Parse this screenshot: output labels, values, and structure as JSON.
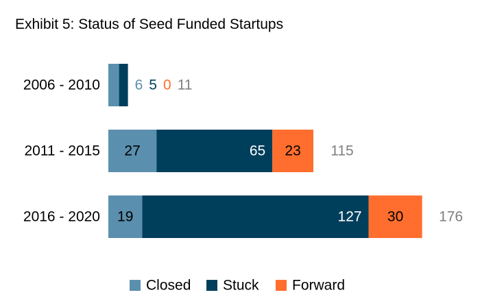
{
  "chart_data": {
    "type": "bar",
    "orientation": "horizontal",
    "stacked": true,
    "title": "Exhibit 5: Status of Seed Funded Startups",
    "categories": [
      "2006 - 2010",
      "2011 - 2015",
      "2016 - 2020"
    ],
    "series": [
      {
        "name": "Closed",
        "values": [
          6,
          27,
          19
        ],
        "color": "#5b8fae",
        "label_color": "#000000"
      },
      {
        "name": "Stuck",
        "values": [
          5,
          65,
          127
        ],
        "color": "#003f5c",
        "label_color": "#ffffff"
      },
      {
        "name": "Forward",
        "values": [
          0,
          23,
          30
        ],
        "color": "#ff6e2e",
        "label_color": "#000000"
      }
    ],
    "totals": [
      11,
      115,
      176
    ],
    "outside_label_colors": [
      "#5b8fae",
      "#003f5c",
      "#ff6e2e"
    ],
    "total_color": "#7f7f7f",
    "xlim": [
      0,
      176
    ],
    "grid": false,
    "legend_position": "bottom"
  }
}
